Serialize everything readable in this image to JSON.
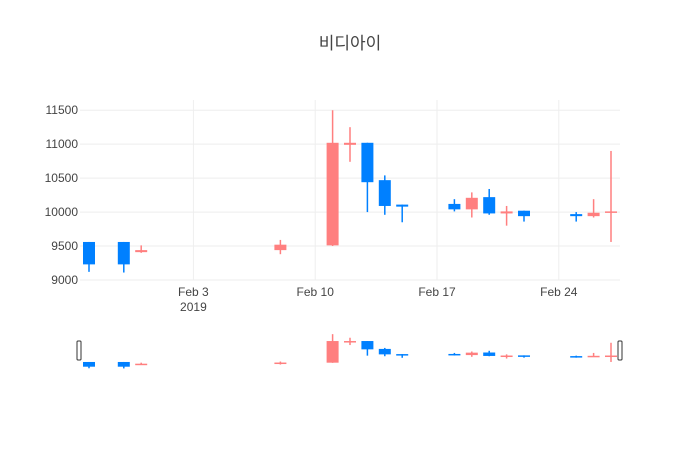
{
  "chart_data": {
    "type": "candlestick",
    "title": "비디아이",
    "xlabel": "",
    "ylabel": "",
    "ylim": [
      9000,
      11650
    ],
    "xlim": [
      "2019-01-28",
      "2019-02-27"
    ],
    "y_ticks": [
      9000,
      9500,
      10000,
      10500,
      11000,
      11500
    ],
    "x_ticks": [
      {
        "date": "2019-02-03",
        "label": "Feb 3",
        "sublabel": "2019"
      },
      {
        "date": "2019-02-10",
        "label": "Feb 10",
        "sublabel": ""
      },
      {
        "date": "2019-02-17",
        "label": "Feb 17",
        "sublabel": ""
      },
      {
        "date": "2019-02-24",
        "label": "Feb 24",
        "sublabel": ""
      }
    ],
    "grid": true,
    "legend": "none",
    "rangeslider": true,
    "colors": {
      "increasing": "#ff7f7f",
      "decreasing": "#0080ff",
      "grid": "#eeeeee"
    },
    "series": [
      {
        "date": "2019-01-28",
        "open": 9560,
        "high": 9560,
        "low": 9120,
        "close": 9230
      },
      {
        "date": "2019-01-30",
        "open": 9560,
        "high": 9560,
        "low": 9110,
        "close": 9230
      },
      {
        "date": "2019-01-31",
        "open": 9410,
        "high": 9510,
        "low": 9400,
        "close": 9440
      },
      {
        "date": "2019-02-08",
        "open": 9440,
        "high": 9590,
        "low": 9380,
        "close": 9520
      },
      {
        "date": "2019-02-11",
        "open": 9510,
        "high": 11500,
        "low": 9500,
        "close": 11020
      },
      {
        "date": "2019-02-12",
        "open": 10990,
        "high": 11250,
        "low": 10740,
        "close": 11020
      },
      {
        "date": "2019-02-13",
        "open": 11020,
        "high": 11020,
        "low": 10000,
        "close": 10440
      },
      {
        "date": "2019-02-14",
        "open": 10470,
        "high": 10540,
        "low": 9960,
        "close": 10090
      },
      {
        "date": "2019-02-15",
        "open": 10110,
        "high": 10110,
        "low": 9850,
        "close": 10080
      },
      {
        "date": "2019-02-18",
        "open": 10120,
        "high": 10190,
        "low": 10010,
        "close": 10040
      },
      {
        "date": "2019-02-19",
        "open": 10040,
        "high": 10290,
        "low": 9920,
        "close": 10210
      },
      {
        "date": "2019-02-20",
        "open": 10220,
        "high": 10340,
        "low": 9960,
        "close": 9980
      },
      {
        "date": "2019-02-21",
        "open": 9980,
        "high": 10090,
        "low": 9800,
        "close": 10010
      },
      {
        "date": "2019-02-22",
        "open": 10020,
        "high": 10020,
        "low": 9860,
        "close": 9940
      },
      {
        "date": "2019-02-25",
        "open": 9970,
        "high": 10000,
        "low": 9860,
        "close": 9940
      },
      {
        "date": "2019-02-26",
        "open": 9940,
        "high": 10190,
        "low": 9920,
        "close": 9990
      },
      {
        "date": "2019-02-27",
        "open": 9990,
        "high": 10900,
        "low": 9560,
        "close": 10010
      }
    ]
  }
}
